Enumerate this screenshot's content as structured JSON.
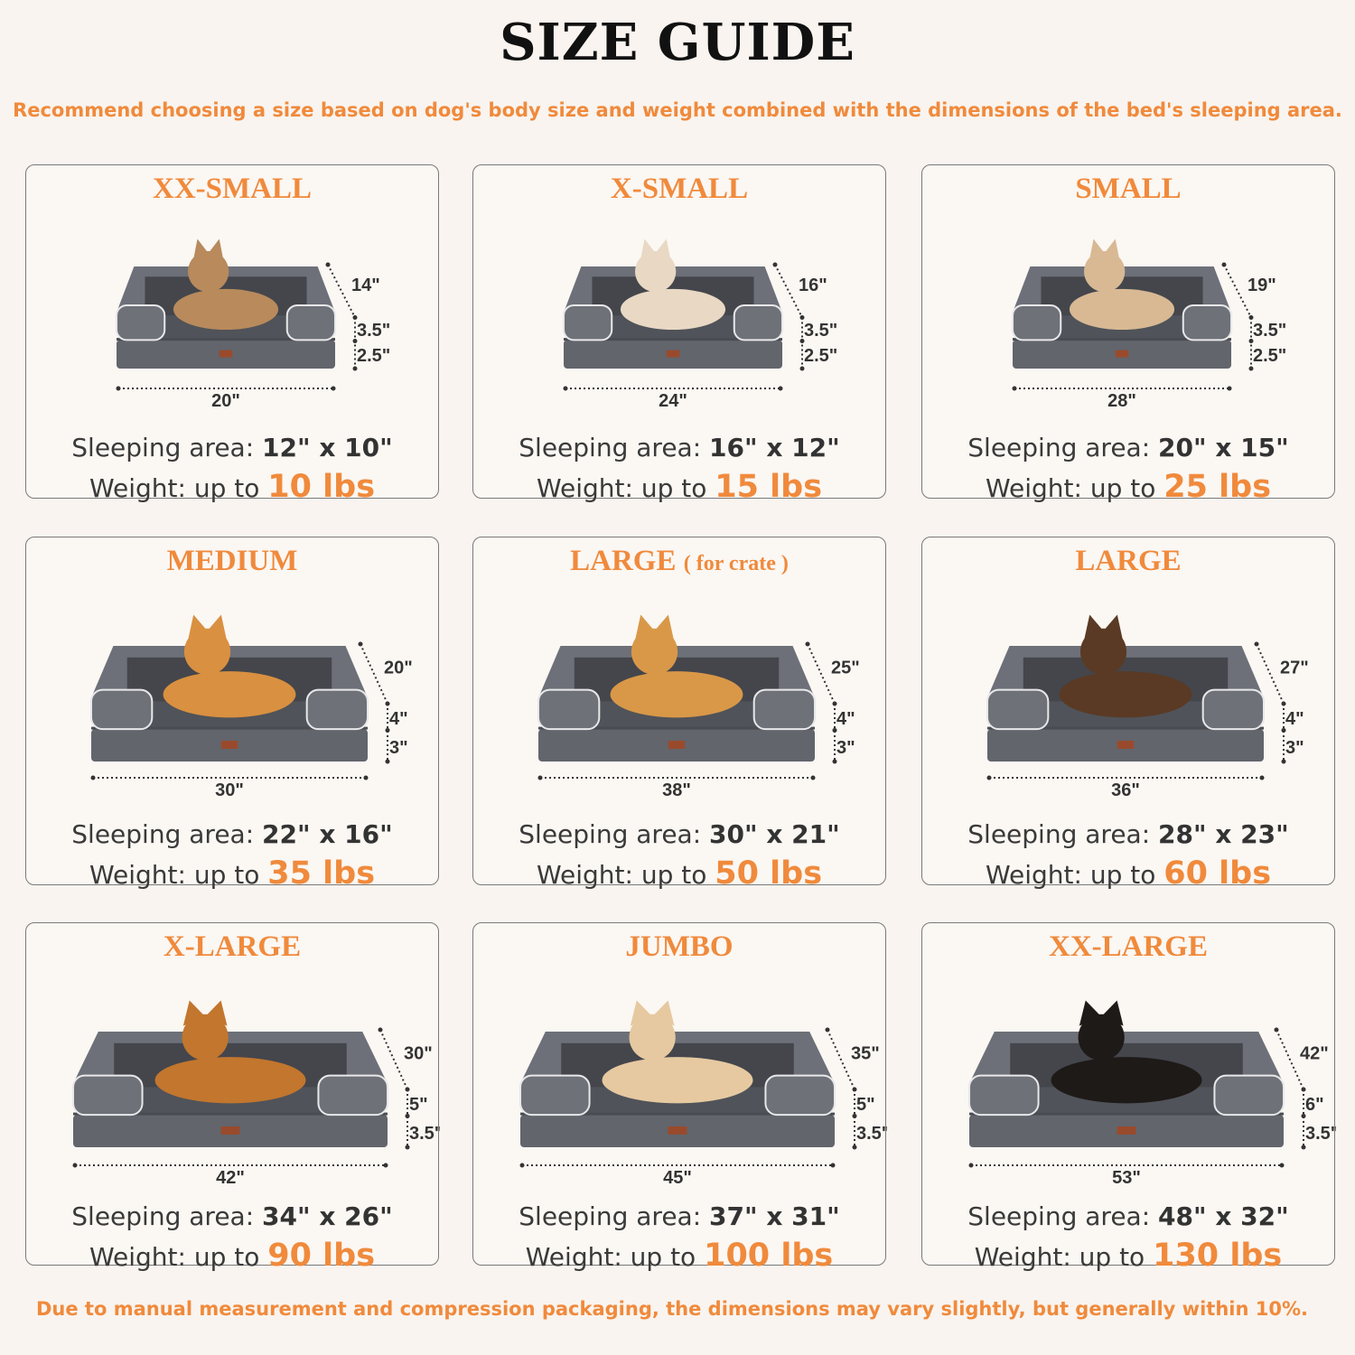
{
  "header": {
    "title": "SIZE GUIDE",
    "subtitle": "Recommend choosing a size based on dog's body size and weight combined with the dimensions of the bed's sleeping area."
  },
  "labels": {
    "sleeping_area": "Sleeping area:",
    "weight": "Weight:",
    "up_to": "up to"
  },
  "sizes": [
    {
      "name": "XX-SMALL",
      "note": "",
      "length": "20\"",
      "depth": "14\"",
      "bolster": "3.5\"",
      "base": "2.5\"",
      "sleeping_area": "12\" x 10\"",
      "weight": "10 lbs",
      "pet": "cat"
    },
    {
      "name": "X-SMALL",
      "note": "",
      "length": "24\"",
      "depth": "16\"",
      "bolster": "3.5\"",
      "base": "2.5\"",
      "sleeping_area": "16\" x 12\"",
      "weight": "15 lbs",
      "pet": "dog"
    },
    {
      "name": "SMALL",
      "note": "",
      "length": "28\"",
      "depth": "19\"",
      "bolster": "3.5\"",
      "base": "2.5\"",
      "sleeping_area": "20\" x 15\"",
      "weight": "25 lbs",
      "pet": "dog"
    },
    {
      "name": "MEDIUM",
      "note": "",
      "length": "30\"",
      "depth": "20\"",
      "bolster": "4\"",
      "base": "3\"",
      "sleeping_area": "22\" x 16\"",
      "weight": "35 lbs",
      "pet": "dog"
    },
    {
      "name": "LARGE",
      "note": "( for crate )",
      "length": "38\"",
      "depth": "25\"",
      "bolster": "4\"",
      "base": "3\"",
      "sleeping_area": "30\" x 21\"",
      "weight": "50 lbs",
      "pet": "dog"
    },
    {
      "name": "LARGE",
      "note": "",
      "length": "36\"",
      "depth": "27\"",
      "bolster": "4\"",
      "base": "3\"",
      "sleeping_area": "28\" x 23\"",
      "weight": "60 lbs",
      "pet": "dog"
    },
    {
      "name": "X-LARGE",
      "note": "",
      "length": "42\"",
      "depth": "30\"",
      "bolster": "5\"",
      "base": "3.5\"",
      "sleeping_area": "34\" x 26\"",
      "weight": "90 lbs",
      "pet": "dog"
    },
    {
      "name": "JUMBO",
      "note": "",
      "length": "45\"",
      "depth": "35\"",
      "bolster": "5\"",
      "base": "3.5\"",
      "sleeping_area": "37\" x 31\"",
      "weight": "100 lbs",
      "pet": "dog"
    },
    {
      "name": "XX-LARGE",
      "note": "",
      "length": "53\"",
      "depth": "42\"",
      "bolster": "6\"",
      "base": "3.5\"",
      "sleeping_area": "48\" x 32\"",
      "weight": "130 lbs",
      "pet": "dog"
    }
  ],
  "footnote": "Due to manual measurement and compression packaging, the dimensions may vary slightly, but generally within 10%.",
  "colors": {
    "accent": "#f08a3c",
    "bed": "#62656c",
    "background": "#f9f4ef"
  }
}
